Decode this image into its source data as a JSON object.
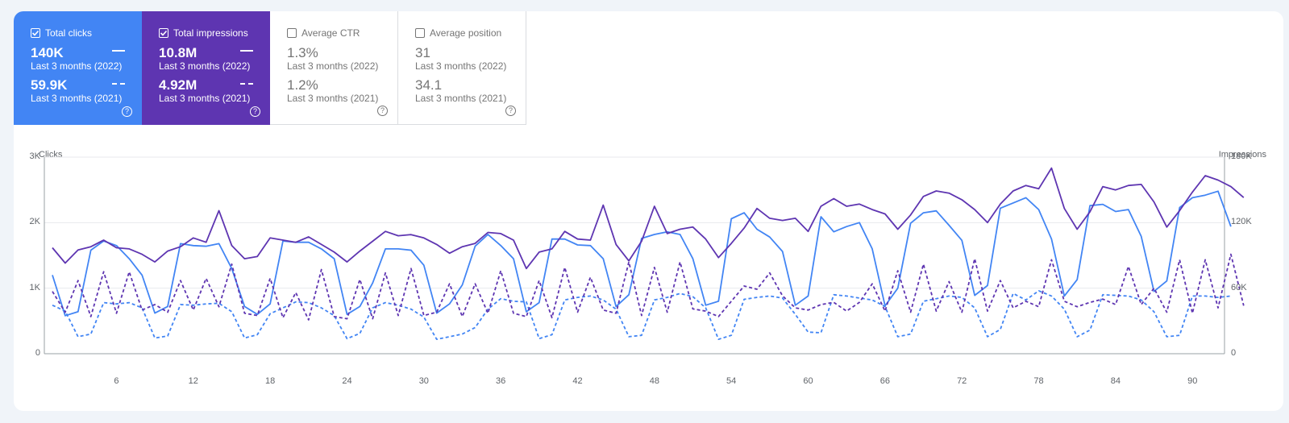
{
  "cards": [
    {
      "label": "Total clicks",
      "checked": true,
      "value_2022": "140K",
      "period_2022": "Last 3 months (2022)",
      "value_2021": "59.9K",
      "period_2021": "Last 3 months (2021)"
    },
    {
      "label": "Total impressions",
      "checked": true,
      "value_2022": "10.8M",
      "period_2022": "Last 3 months (2022)",
      "value_2021": "4.92M",
      "period_2021": "Last 3 months (2021)"
    },
    {
      "label": "Average CTR",
      "checked": false,
      "value_2022": "1.3%",
      "period_2022": "Last 3 months (2022)",
      "value_2021": "1.2%",
      "period_2021": "Last 3 months (2021)"
    },
    {
      "label": "Average position",
      "checked": false,
      "value_2022": "31",
      "period_2022": "Last 3 months (2022)",
      "value_2021": "34.1",
      "period_2021": "Last 3 months (2021)"
    }
  ],
  "help_glyph": "?",
  "colors": {
    "clicks": "#4285f4",
    "impressions": "#5e35b1",
    "grid": "#e8eaed",
    "axis": "#9aa0a6"
  },
  "chart_data": {
    "type": "line",
    "ylabel_left": "Clicks",
    "ylabel_right": "Impressions",
    "y_left_ticks": [
      "0",
      "1K",
      "2K",
      "3K"
    ],
    "y_right_ticks": [
      "0",
      "60K",
      "120K",
      "180K"
    ],
    "ylim_left": [
      0,
      3000
    ],
    "ylim_right": [
      0,
      180000
    ],
    "x_ticks": [
      "6",
      "12",
      "18",
      "24",
      "30",
      "36",
      "42",
      "48",
      "54",
      "60",
      "66",
      "72",
      "78",
      "84",
      "90"
    ],
    "x_range": [
      1,
      92
    ],
    "series": [
      {
        "name": "Total clicks",
        "period": "Last 3 months (2022)",
        "axis": "left",
        "style": "solid",
        "values": [
          1200,
          580,
          640,
          1580,
          1720,
          1650,
          1450,
          1200,
          620,
          720,
          1680,
          1650,
          1640,
          1680,
          1300,
          720,
          600,
          760,
          1720,
          1700,
          1700,
          1600,
          1450,
          600,
          720,
          1080,
          1600,
          1600,
          1580,
          1350,
          620,
          760,
          1050,
          1640,
          1820,
          1650,
          1450,
          640,
          780,
          1750,
          1750,
          1660,
          1650,
          1450,
          720,
          900,
          1760,
          1820,
          1860,
          1820,
          1450,
          740,
          800,
          2060,
          2150,
          1900,
          1780,
          1560,
          740,
          880,
          2090,
          1860,
          1940,
          2000,
          1600,
          730,
          1000,
          1990,
          2150,
          2180,
          1960,
          1730,
          890,
          1040,
          2220,
          2300,
          2380,
          2200,
          1750,
          880,
          1130,
          2260,
          2280,
          2170,
          2200,
          1790,
          950,
          1110,
          2230,
          2380,
          2420,
          2480,
          1940
        ]
      },
      {
        "name": "Total impressions",
        "period": "Last 3 months (2022)",
        "axis": "right",
        "style": "solid",
        "values": [
          97000,
          83000,
          95000,
          98000,
          104000,
          97000,
          96000,
          91000,
          84000,
          94000,
          98000,
          106000,
          102000,
          131000,
          99000,
          87000,
          89000,
          106000,
          104000,
          102000,
          107000,
          100000,
          93000,
          84000,
          94000,
          103000,
          112000,
          108000,
          109000,
          106000,
          100000,
          92000,
          98000,
          101000,
          111000,
          110000,
          104000,
          78000,
          93000,
          96000,
          112000,
          105000,
          104000,
          136000,
          100000,
          85000,
          103000,
          135000,
          110000,
          114000,
          116000,
          105000,
          88000,
          101000,
          115000,
          133000,
          124000,
          122000,
          124000,
          112000,
          135000,
          142000,
          135000,
          137000,
          132000,
          128000,
          114000,
          127000,
          144000,
          149000,
          147000,
          141000,
          132000,
          120000,
          137000,
          149000,
          154000,
          151000,
          170000,
          133000,
          114000,
          130000,
          153000,
          150000,
          154000,
          155000,
          139000,
          116000,
          131000,
          148000,
          163000,
          159000,
          153000,
          143000
        ]
      },
      {
        "name": "Total clicks",
        "period": "Last 3 months (2021)",
        "axis": "left",
        "style": "dashed",
        "values": [
          740,
          650,
          260,
          300,
          780,
          760,
          780,
          700,
          240,
          270,
          750,
          740,
          760,
          770,
          640,
          240,
          290,
          610,
          700,
          790,
          780,
          700,
          580,
          230,
          310,
          700,
          780,
          740,
          680,
          560,
          220,
          260,
          300,
          400,
          680,
          840,
          800,
          790,
          230,
          290,
          820,
          860,
          880,
          820,
          680,
          260,
          280,
          820,
          860,
          920,
          870,
          700,
          220,
          280,
          830,
          860,
          880,
          850,
          600,
          330,
          320,
          900,
          880,
          850,
          820,
          720,
          260,
          300,
          800,
          840,
          880,
          860,
          700,
          260,
          370,
          920,
          820,
          960,
          880,
          680,
          260,
          360,
          900,
          890,
          880,
          820,
          640,
          260,
          280,
          880,
          880,
          860,
          880
        ]
      },
      {
        "name": "Total impressions",
        "period": "Last 3 months (2021)",
        "axis": "right",
        "style": "dashed",
        "values": [
          57000,
          38000,
          67000,
          34000,
          75000,
          37000,
          75000,
          40000,
          45000,
          38000,
          67000,
          40000,
          69000,
          43000,
          82000,
          37000,
          35000,
          69000,
          33000,
          56000,
          31000,
          77000,
          34000,
          32000,
          68000,
          32000,
          74000,
          35000,
          78000,
          35000,
          38000,
          64000,
          34000,
          64000,
          37000,
          76000,
          37000,
          34000,
          67000,
          33000,
          79000,
          38000,
          70000,
          40000,
          37000,
          84000,
          35000,
          79000,
          38000,
          84000,
          41000,
          39000,
          34000,
          48000,
          62000,
          59000,
          74000,
          53000,
          42000,
          40000,
          45000,
          47000,
          39000,
          47000,
          64000,
          39000,
          76000,
          38000,
          82000,
          39000,
          66000,
          38000,
          87000,
          39000,
          67000,
          42000,
          48000,
          43000,
          86000,
          48000,
          43000,
          47000,
          50000,
          45000,
          80000,
          45000,
          60000,
          38000,
          86000,
          37000,
          86000,
          42000,
          91000,
          44000
        ]
      }
    ]
  }
}
